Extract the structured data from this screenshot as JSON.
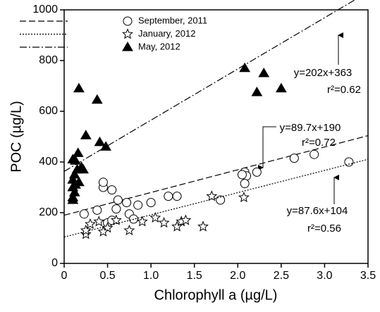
{
  "chart_data": {
    "type": "scatter",
    "x_label": "Chlorophyll a (µg/L)",
    "y_label": "POC (µg/L)",
    "xlim": [
      0,
      3.5
    ],
    "ylim": [
      0,
      1000
    ],
    "xticks": [
      0,
      0.5,
      {
        "value": 1,
        "label": "1.0"
      },
      1.5,
      {
        "value": 2,
        "label": "2.0"
      },
      2.5,
      {
        "value": 3,
        "label": "3.0"
      },
      3.5
    ],
    "yticks": [
      0,
      200,
      400,
      600,
      800,
      1000
    ],
    "series": [
      {
        "name": "September, 2011",
        "marker": "circle",
        "line_style": "dashed",
        "color": "#000000",
        "x": [
          0.23,
          0.38,
          0.45,
          0.45,
          0.5,
          0.55,
          0.6,
          0.62,
          0.72,
          0.75,
          0.55,
          0.85,
          1.0,
          1.2,
          1.3,
          1.8,
          2.08,
          2.1,
          2.05,
          2.22,
          2.08,
          2.65,
          2.88,
          3.28,
          0.8
        ],
        "y": [
          195,
          210,
          300,
          320,
          160,
          290,
          215,
          250,
          240,
          195,
          170,
          230,
          240,
          265,
          265,
          250,
          360,
          345,
          350,
          360,
          315,
          415,
          430,
          400,
          175
        ],
        "fit": {
          "slope": 89.7,
          "intercept": 190
        }
      },
      {
        "name": "January, 2012",
        "marker": "star",
        "line_style": "dotted",
        "color": "#000000",
        "x": [
          0.25,
          0.3,
          0.4,
          0.5,
          0.6,
          0.75,
          0.9,
          1.05,
          1.15,
          1.3,
          1.35,
          1.4,
          1.6,
          1.7,
          2.07,
          0.45,
          0.25
        ],
        "y": [
          115,
          155,
          165,
          140,
          170,
          130,
          165,
          180,
          160,
          145,
          165,
          170,
          145,
          265,
          260,
          125,
          130
        ],
        "fit": {
          "slope": 87.6,
          "intercept": 104
        }
      },
      {
        "name": "May, 2012",
        "marker": "triangle",
        "line_style": "dashdot",
        "color": "#000000",
        "x": [
          0.17,
          0.38,
          0.25,
          0.41,
          0.48,
          0.1,
          0.13,
          0.16,
          0.2,
          0.22,
          0.15,
          0.12,
          0.1,
          0.17,
          0.1,
          0.12,
          0.1,
          0.1,
          0.13,
          2.08,
          2.3,
          2.22,
          2.5
        ],
        "y": [
          690,
          645,
          505,
          478,
          460,
          410,
          405,
          435,
          380,
          370,
          370,
          350,
          330,
          320,
          300,
          280,
          260,
          250,
          310,
          770,
          750,
          675,
          690
        ],
        "fit": {
          "slope": 202,
          "intercept": 363
        }
      }
    ],
    "annotations": [
      {
        "equation": "y=202x+363",
        "r2": "r²=0.62"
      },
      {
        "equation": "y=89.7x+190",
        "r2": "r²=0.72"
      },
      {
        "equation": "y=87.6x+104",
        "r2": "r²=0.56"
      }
    ]
  }
}
